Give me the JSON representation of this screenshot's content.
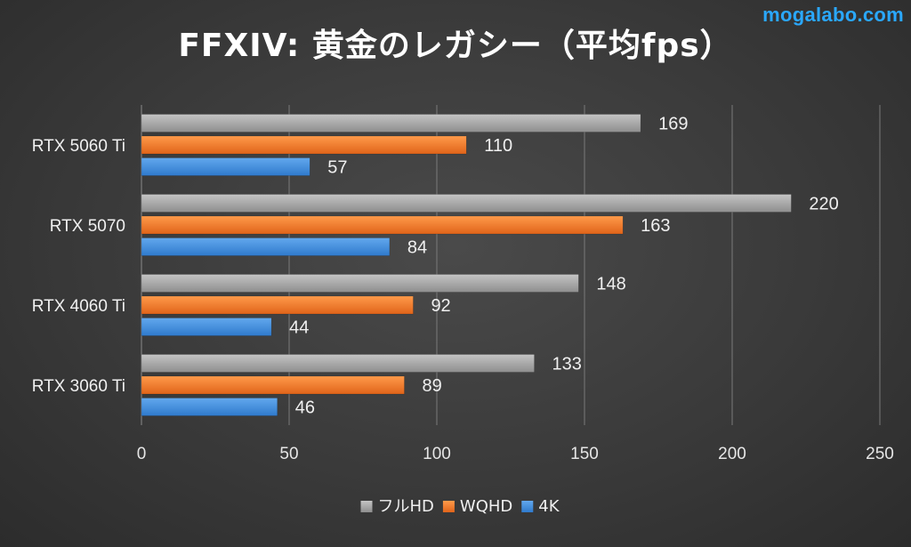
{
  "watermark": "mogalabo.com",
  "chart_data": {
    "type": "bar",
    "orientation": "horizontal",
    "title": "FFXIV: 黄金のレガシー（平均fps）",
    "categories": [
      "RTX 5060 Ti",
      "RTX 5070",
      "RTX 4060 Ti",
      "RTX 3060 Ti"
    ],
    "series": [
      {
        "name": "フルHD",
        "color": "#a6a6a6",
        "values": [
          169,
          220,
          148,
          133
        ]
      },
      {
        "name": "WQHD",
        "color": "#f07a2a",
        "values": [
          110,
          163,
          92,
          89
        ]
      },
      {
        "name": "4K",
        "color": "#3f8fdf",
        "values": [
          57,
          84,
          44,
          46
        ]
      }
    ],
    "xlim": [
      0,
      250
    ],
    "xticks": [
      0,
      50,
      100,
      150,
      200,
      250
    ],
    "grid": "vertical",
    "legend": "bottom"
  }
}
